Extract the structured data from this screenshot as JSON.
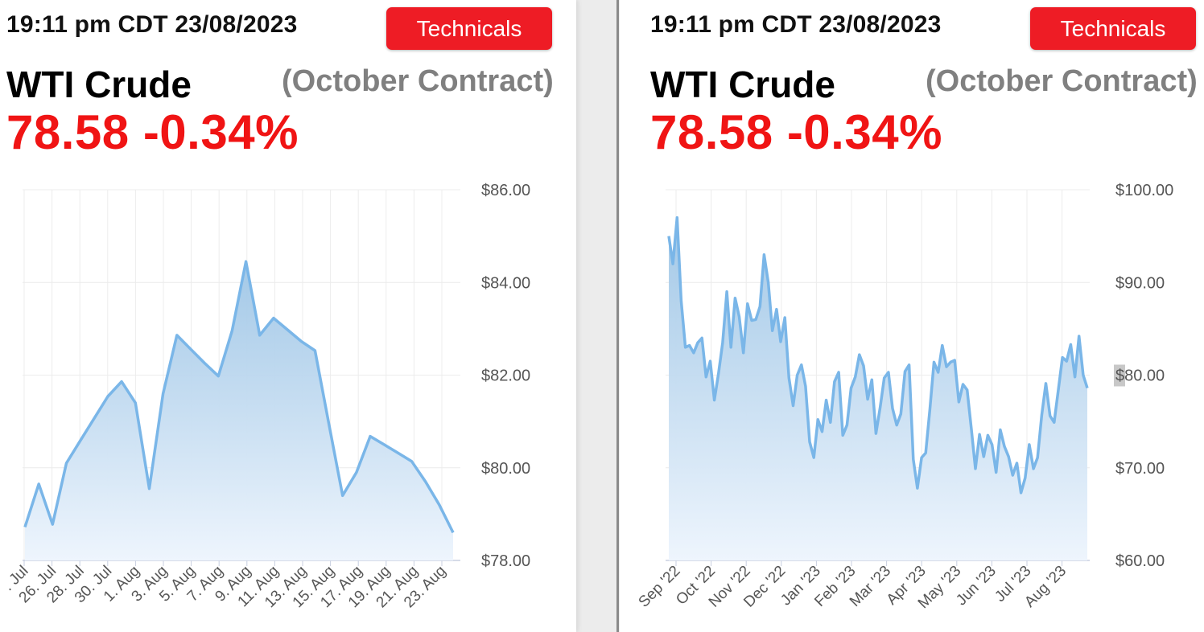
{
  "colors": {
    "accent_red": "#ee1c25",
    "change_negative": "#f01414",
    "line": "#7ab6e8",
    "area_top": "#9fc6e6",
    "area_bottom": "#eef5fd",
    "grid": "#ececec",
    "axis_text": "#555555"
  },
  "panels": [
    {
      "timestamp": "19:11 pm CDT 23/08/2023",
      "technicals_label": "Technicals",
      "instrument": "WTI Crude",
      "contract": "(October Contract)",
      "price_change": "78.58 -0.34%"
    },
    {
      "timestamp": "19:11 pm CDT 23/08/2023",
      "technicals_label": "Technicals",
      "instrument": "WTI Crude",
      "contract": "(October Contract)",
      "price_change": "78.58 -0.34%"
    }
  ],
  "chart_data": [
    {
      "type": "area",
      "title": "",
      "xlabel": "",
      "ylabel": "",
      "ylim": [
        78,
        86
      ],
      "yticks": [
        86,
        84,
        82,
        80,
        78
      ],
      "ytick_labels": [
        "$86.00",
        "$84.00",
        "$82.00",
        "$80.00",
        "$78.00"
      ],
      "x_tick_labels": [
        ". Jul",
        "26. Jul",
        "28. Jul",
        "30. Jul",
        "1. Aug",
        "3. Aug",
        "5. Aug",
        "7. Aug",
        "9. Aug",
        "11. Aug",
        "13. Aug",
        "15. Aug",
        "17. Aug",
        "19. Aug",
        "21. Aug",
        "23. Aug"
      ],
      "grid": true,
      "series": [
        {
          "values": [
            78.72,
            79.65,
            78.78,
            80.1,
            80.58,
            81.06,
            81.54,
            81.86,
            81.4,
            79.55,
            81.6,
            82.86,
            82.56,
            82.26,
            81.98,
            82.96,
            84.45,
            82.86,
            83.23,
            82.98,
            82.73,
            82.53,
            80.96,
            79.4,
            79.9,
            80.68,
            80.5,
            80.32,
            80.14,
            79.7,
            79.2,
            78.6
          ]
        }
      ]
    },
    {
      "type": "area",
      "title": "",
      "xlabel": "",
      "ylabel": "",
      "ylim": [
        60,
        100
      ],
      "yticks": [
        100,
        90,
        80,
        70,
        60
      ],
      "ytick_labels": [
        "$100.00",
        "$90.00",
        "$80.00",
        "$70.00",
        "$60.00"
      ],
      "highlighted_ytick": "$80.00",
      "x_tick_labels": [
        "Sep '22",
        "Oct '22",
        "Nov '22",
        "Dec '22",
        "Jan '23",
        "Feb '23",
        "Mar '23",
        "Apr '23",
        "May '23",
        "Jun '23",
        "Jul '23",
        "Aug '23"
      ],
      "grid": true,
      "series": [
        {
          "values": [
            95,
            92,
            97,
            88,
            83,
            83.2,
            82.4,
            83.5,
            84,
            79.8,
            81.5,
            77.3,
            80.2,
            83.5,
            89,
            83,
            88.3,
            86.3,
            82.4,
            87.7,
            85.9,
            86,
            87.4,
            93,
            90,
            84.8,
            87.1,
            83.6,
            86.2,
            79.7,
            76.7,
            80,
            81.1,
            78.8,
            72.8,
            71.1,
            75.2,
            73.9,
            77.3,
            74.9,
            79.3,
            80.3,
            73.5,
            74.6,
            78.6,
            79.8,
            82.2,
            81,
            77.4,
            79.5,
            73.7,
            76.5,
            79.7,
            80.3,
            76.4,
            74.6,
            75.8,
            80.4,
            81.1,
            70.9,
            67.8,
            71.1,
            71.6,
            76.3,
            81.4,
            80.3,
            83.2,
            80.9,
            81.4,
            81.6,
            77.1,
            79,
            78.4,
            74.3,
            69.9,
            73.6,
            71.2,
            73.5,
            72.5,
            69.5,
            74.1,
            72.3,
            71.2,
            69.2,
            70.5,
            67.3,
            68.9,
            72.5,
            69.9,
            71.1,
            75.7,
            79.1,
            75.6,
            74.9,
            78.4,
            81.9,
            81.5,
            83.3,
            79.8,
            84.2,
            80,
            78.6
          ]
        }
      ]
    }
  ]
}
